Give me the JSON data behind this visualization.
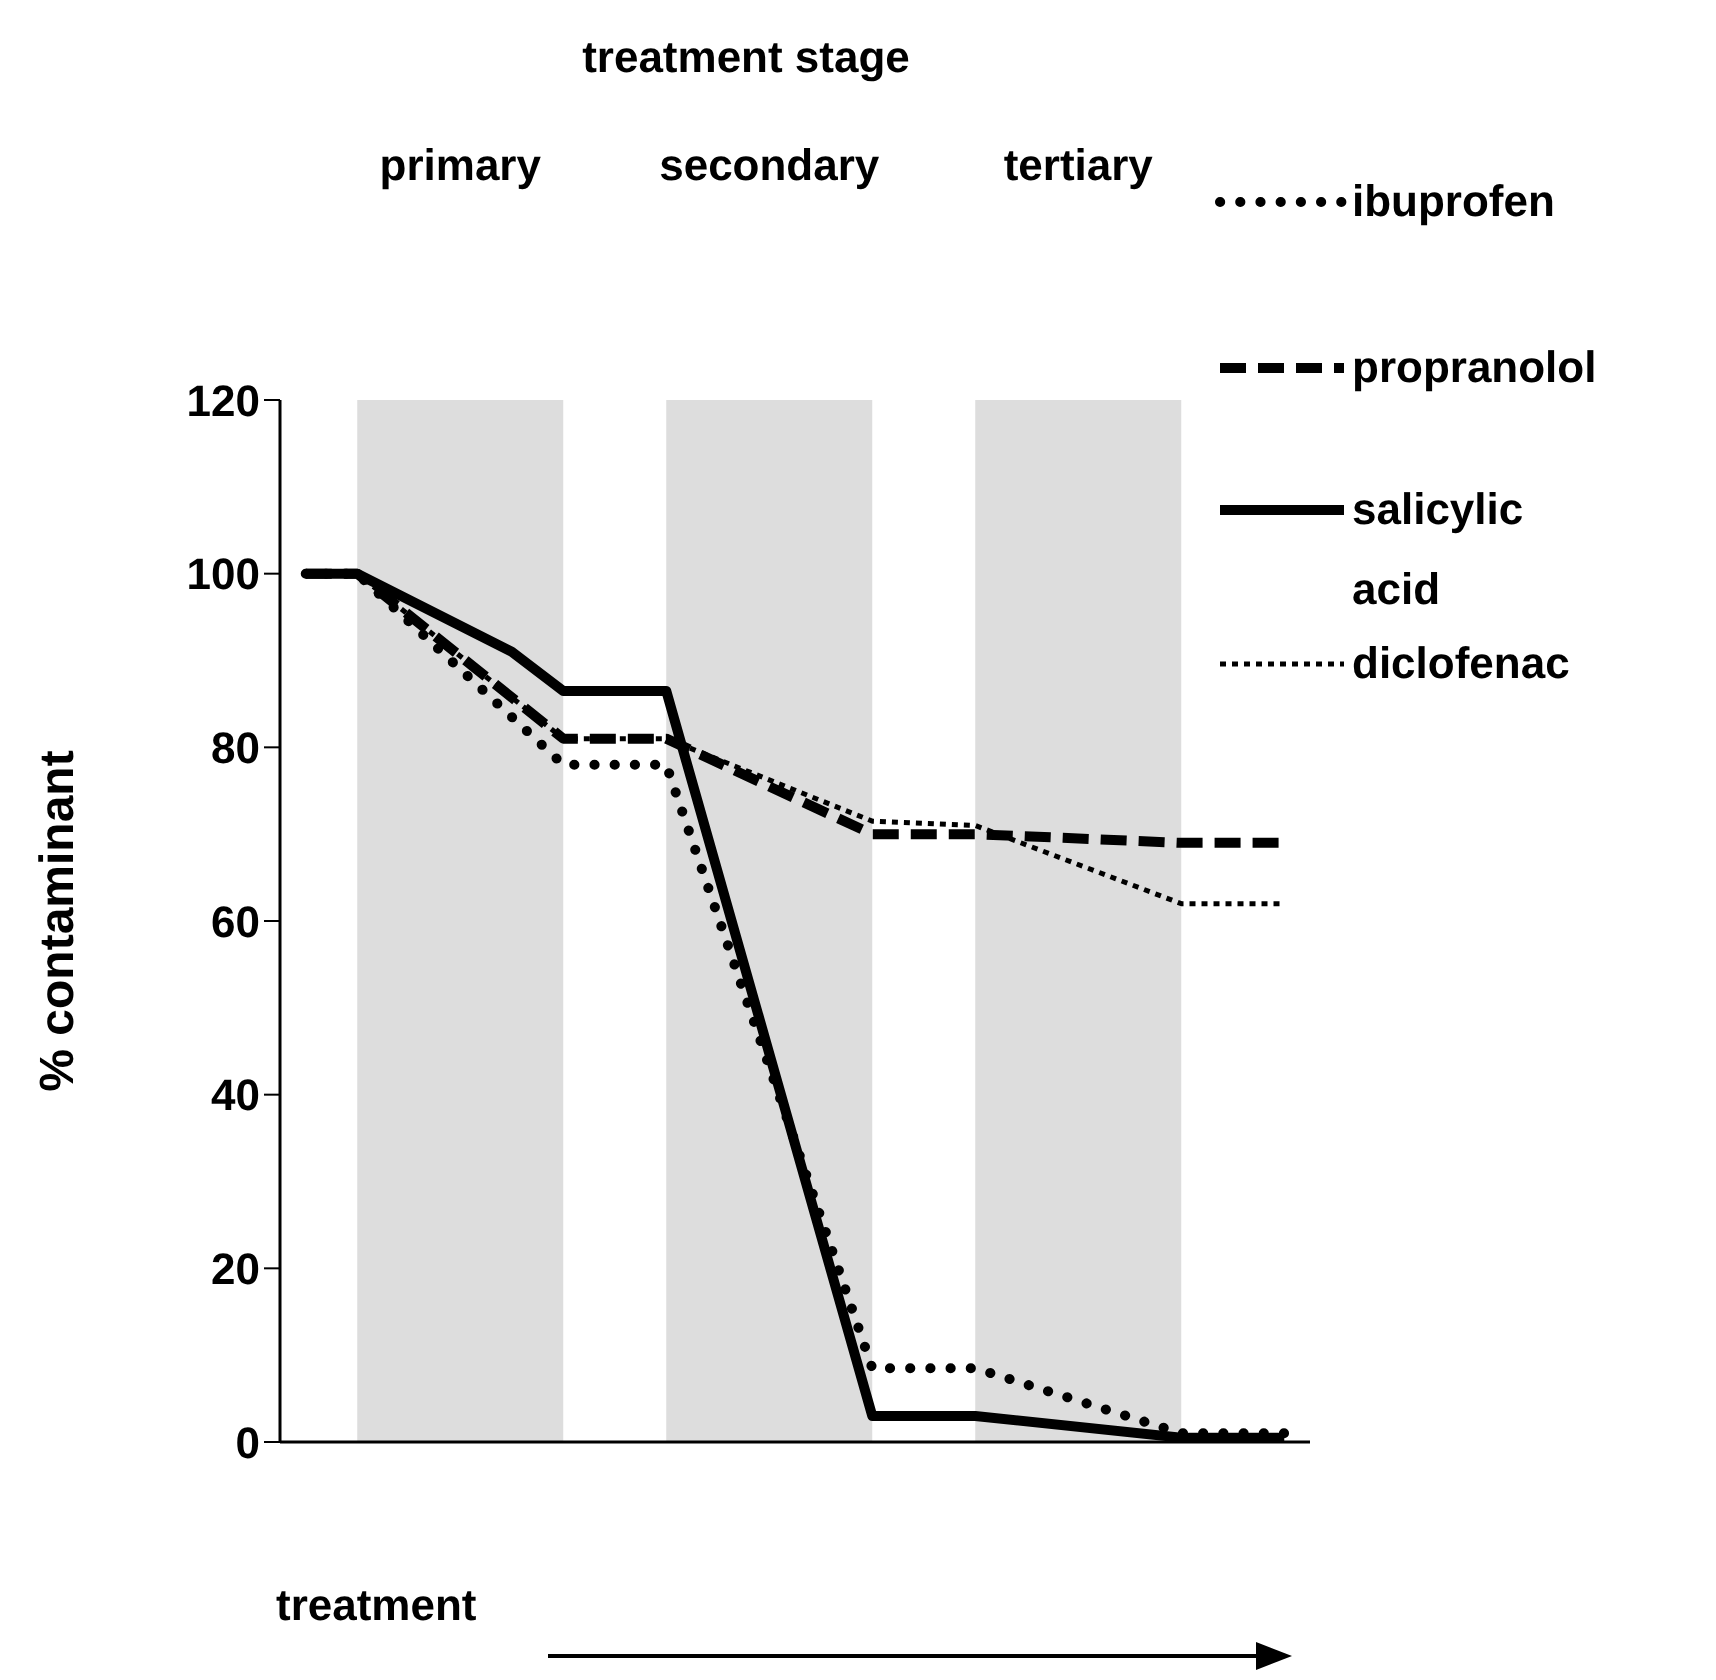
{
  "chart_data": {
    "type": "line",
    "title": "treatment stage",
    "xlabel": "treatment",
    "ylabel": "% contaminant",
    "categories": [
      null,
      null,
      null,
      null,
      null,
      null,
      null,
      null,
      null,
      null,
      null,
      null,
      null,
      null,
      null,
      null,
      null,
      null,
      null,
      null
    ],
    "ylim": [
      0,
      120
    ],
    "yticks": [
      0,
      20,
      40,
      60,
      80,
      100,
      120
    ],
    "grid": false,
    "legend": "top right",
    "marker": "none",
    "series": [
      {
        "name": "ibuprofen",
        "color": "#000000",
        "line_style": "dotted",
        "values": [
          100,
          100,
          null,
          null,
          null,
          78,
          null,
          78,
          null,
          null,
          null,
          8.5,
          null,
          8.5,
          null,
          null,
          null,
          1,
          null,
          1
        ]
      },
      {
        "name": "propranolol",
        "color": "#000000",
        "line_style": "dashed",
        "values": [
          100,
          100,
          null,
          null,
          null,
          81,
          null,
          81,
          null,
          null,
          null,
          70,
          null,
          70,
          null,
          null,
          null,
          69,
          null,
          69
        ]
      },
      {
        "name": "salicylic acid",
        "color": "#000000",
        "line_style": "solid",
        "values": [
          100,
          100,
          null,
          null,
          91,
          86.5,
          null,
          86.5,
          null,
          null,
          null,
          3,
          null,
          3,
          null,
          null,
          null,
          0.5,
          null,
          0.5
        ]
      },
      {
        "name": "diclofenac",
        "color": "#000000",
        "line_style": "dotted",
        "values": [
          100,
          100,
          null,
          null,
          null,
          81,
          null,
          81,
          null,
          null,
          null,
          71.5,
          null,
          71,
          null,
          null,
          null,
          62,
          null,
          62
        ]
      }
    ],
    "annotations": [
      "primary",
      "secondary",
      "tertiary"
    ]
  }
}
